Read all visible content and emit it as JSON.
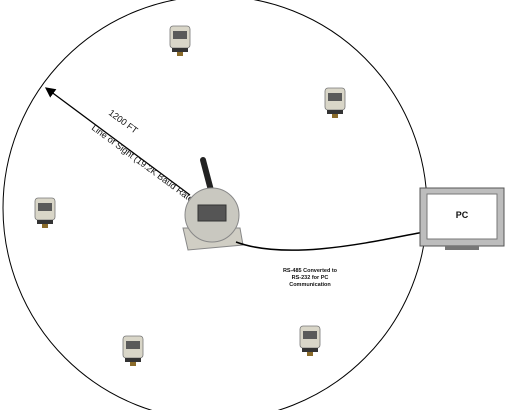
{
  "labels": {
    "distance": "1200 FT",
    "line_of_sight": "Line of Sight (19.2K Baud Rate)",
    "pc": "PC",
    "converter": [
      "RS-485 Converted to",
      "RS-232 for PC",
      "Communication"
    ]
  }
}
